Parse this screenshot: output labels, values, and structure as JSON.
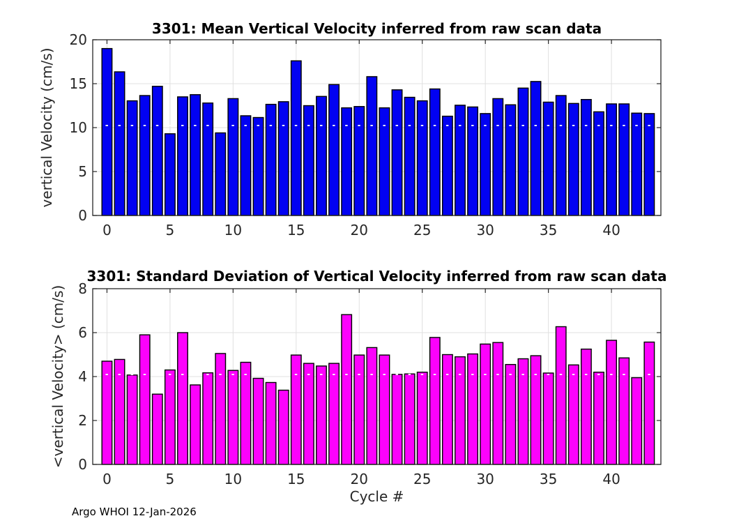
{
  "figure": {
    "background": "#ffffff",
    "grid_color": "#e0e0e0",
    "axis_color": "#262626",
    "footer_text": "Argo WHOI 12-Jan-2026",
    "xlabel": "Cycle #"
  },
  "chart_data": [
    {
      "type": "bar",
      "title": "3301: Mean Vertical Velocity inferred from raw scan data",
      "ylabel": "vertical Velocity (cm/s)",
      "xlabel": "",
      "bar_color": "#0202f2",
      "bar_edge_color": "#000000",
      "grid": true,
      "legend": "none",
      "ylim": [
        0,
        20
      ],
      "yticks": [
        0,
        5,
        10,
        15,
        20
      ],
      "xticks": [
        0,
        5,
        10,
        15,
        20,
        25,
        30,
        35,
        40
      ],
      "xlim": [
        -1.13,
        43.92
      ],
      "x": [
        0,
        1,
        2,
        3,
        4,
        5,
        6,
        7,
        8,
        9,
        10,
        11,
        12,
        13,
        14,
        15,
        16,
        17,
        18,
        19,
        20,
        21,
        22,
        23,
        24,
        25,
        26,
        27,
        28,
        29,
        30,
        31,
        32,
        33,
        34,
        35,
        36,
        37,
        38,
        39,
        40,
        41,
        42,
        43
      ],
      "values": [
        19.0,
        16.35,
        13.05,
        13.65,
        14.7,
        9.3,
        13.5,
        13.75,
        12.8,
        9.4,
        13.3,
        11.35,
        11.15,
        12.65,
        12.95,
        17.6,
        12.5,
        13.55,
        14.9,
        12.25,
        12.4,
        15.8,
        12.25,
        14.3,
        13.45,
        13.05,
        14.4,
        11.3,
        12.55,
        12.35,
        11.6,
        13.3,
        12.6,
        14.5,
        15.25,
        12.9,
        13.65,
        12.75,
        13.2,
        11.8,
        12.7,
        12.7,
        11.65,
        11.6
      ]
    },
    {
      "type": "bar",
      "title": "3301: Standard Deviation of Vertical Velocity inferred from raw scan data",
      "ylabel": "<vertical Velocity> (cm/s)",
      "xlabel": "Cycle #",
      "bar_color": "#fc02fc",
      "bar_edge_color": "#000000",
      "grid": true,
      "legend": "none",
      "ylim": [
        0,
        8
      ],
      "yticks": [
        0,
        2,
        4,
        6,
        8
      ],
      "xticks": [
        0,
        5,
        10,
        15,
        20,
        25,
        30,
        35,
        40
      ],
      "xlim": [
        -1.13,
        43.92
      ],
      "x": [
        0,
        1,
        2,
        3,
        4,
        5,
        6,
        7,
        8,
        9,
        10,
        11,
        12,
        13,
        14,
        15,
        16,
        17,
        18,
        19,
        20,
        21,
        22,
        23,
        24,
        25,
        26,
        27,
        28,
        29,
        30,
        31,
        32,
        33,
        34,
        35,
        36,
        37,
        38,
        39,
        40,
        41,
        42,
        43
      ],
      "values": [
        4.7,
        4.78,
        4.07,
        5.9,
        3.2,
        4.3,
        6.0,
        3.62,
        4.17,
        5.05,
        4.28,
        4.65,
        3.92,
        3.73,
        3.38,
        4.98,
        4.6,
        4.48,
        4.6,
        6.82,
        4.98,
        5.32,
        4.98,
        4.1,
        4.12,
        4.2,
        5.78,
        5.0,
        4.9,
        5.03,
        5.48,
        5.55,
        4.55,
        4.81,
        4.95,
        4.16,
        6.27,
        4.53,
        5.25,
        4.2,
        5.65,
        4.85,
        3.95,
        5.57
      ]
    }
  ]
}
